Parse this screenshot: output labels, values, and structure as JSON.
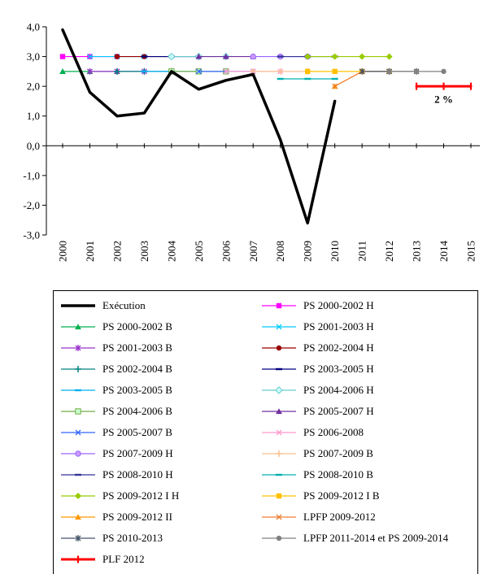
{
  "chart_data": {
    "type": "line",
    "title": "",
    "xlabel": "",
    "ylabel": "",
    "xlim": [
      2000,
      2015
    ],
    "ylim": [
      -3.0,
      4.0
    ],
    "grid": false,
    "legend_position": "bottom",
    "legend_columns": 2,
    "x_values": [
      2000,
      2001,
      2002,
      2003,
      2004,
      2005,
      2006,
      2007,
      2008,
      2009,
      2010,
      2011,
      2012,
      2013,
      2014,
      2015
    ],
    "x_labels": [
      "2000",
      "2001",
      "2002",
      "2003",
      "2004",
      "2005",
      "2006",
      "2007",
      "2008",
      "2009",
      "2010",
      "2011",
      "2012",
      "2013",
      "2014",
      "2015"
    ],
    "y_ticks": [
      {
        "value": 4,
        "label": "4,0"
      },
      {
        "value": 3,
        "label": "3,0"
      },
      {
        "value": 2,
        "label": "2,0"
      },
      {
        "value": 1,
        "label": "1,0"
      },
      {
        "value": 0,
        "label": "0,0"
      },
      {
        "value": -1,
        "label": "-1,0"
      },
      {
        "value": -2,
        "label": "-2,0"
      },
      {
        "value": -3,
        "label": "-3,0"
      }
    ],
    "annotation": {
      "text": "2 %",
      "x": 2014,
      "y": 1.45,
      "color": "#FF0000"
    },
    "series": [
      {
        "name": "Exécution",
        "color": "#000000",
        "marker": "none",
        "line_width": 3.5,
        "points": [
          [
            2000,
            3.9
          ],
          [
            2001,
            1.8
          ],
          [
            2002,
            1.0
          ],
          [
            2003,
            1.1
          ],
          [
            2004,
            2.5
          ],
          [
            2005,
            1.9
          ],
          [
            2006,
            2.2
          ],
          [
            2007,
            2.4
          ],
          [
            2008,
            0.2
          ],
          [
            2009,
            -2.6
          ],
          [
            2010,
            1.5
          ]
        ]
      },
      {
        "name": "PS 2000-2002 H",
        "color": "#FF00FF",
        "marker": "square",
        "points": [
          [
            2000,
            3.0
          ],
          [
            2001,
            3.0
          ],
          [
            2002,
            3.0
          ]
        ]
      },
      {
        "name": "PS 2000-2002 B",
        "color": "#00B050",
        "marker": "triangle",
        "points": [
          [
            2000,
            2.5
          ],
          [
            2001,
            2.5
          ],
          [
            2002,
            2.5
          ]
        ]
      },
      {
        "name": "PS 2001-2003 H",
        "color": "#00CCFF",
        "marker": "x",
        "points": [
          [
            2001,
            3.0
          ],
          [
            2002,
            3.0
          ],
          [
            2003,
            3.0
          ]
        ]
      },
      {
        "name": "PS 2001-2003 B",
        "color": "#9933CC",
        "marker": "asterisk",
        "points": [
          [
            2001,
            2.5
          ],
          [
            2002,
            2.5
          ],
          [
            2003,
            2.5
          ]
        ]
      },
      {
        "name": "PS 2002-2004 H",
        "color": "#990000",
        "marker": "circle",
        "points": [
          [
            2002,
            3.0
          ],
          [
            2003,
            3.0
          ],
          [
            2004,
            3.0
          ]
        ]
      },
      {
        "name": "PS 2002-2004 B",
        "color": "#008080",
        "marker": "plus",
        "points": [
          [
            2002,
            2.5
          ],
          [
            2003,
            2.5
          ],
          [
            2004,
            2.5
          ]
        ]
      },
      {
        "name": "PS 2003-2005 H",
        "color": "#000080",
        "marker": "dash",
        "points": [
          [
            2003,
            3.0
          ],
          [
            2004,
            3.0
          ],
          [
            2005,
            3.0
          ]
        ]
      },
      {
        "name": "PS 2003-2005 B",
        "color": "#00B0F0",
        "marker": "dash",
        "points": [
          [
            2003,
            2.5
          ],
          [
            2004,
            2.5
          ],
          [
            2005,
            2.5
          ]
        ]
      },
      {
        "name": "PS 2004-2006 H",
        "color": "#66CCCC",
        "fill": "#CCFFFF",
        "marker": "diamond",
        "points": [
          [
            2004,
            3.0
          ],
          [
            2005,
            3.0
          ],
          [
            2006,
            3.0
          ]
        ]
      },
      {
        "name": "PS 2004-2006 B",
        "color": "#70AD47",
        "fill": "#CCFFCC",
        "marker": "square",
        "points": [
          [
            2004,
            2.5
          ],
          [
            2005,
            2.5
          ],
          [
            2006,
            2.5
          ]
        ]
      },
      {
        "name": "PS 2005-2007 H",
        "color": "#7030A0",
        "marker": "triangle",
        "points": [
          [
            2005,
            3.0
          ],
          [
            2006,
            3.0
          ],
          [
            2007,
            3.0
          ]
        ]
      },
      {
        "name": "PS 2005-2007 B",
        "color": "#3366FF",
        "marker": "x",
        "points": [
          [
            2005,
            2.5
          ],
          [
            2006,
            2.5
          ],
          [
            2007,
            2.5
          ]
        ]
      },
      {
        "name": "PS 2006-2008",
        "color": "#FF99CC",
        "marker": "x",
        "points": [
          [
            2006,
            2.5
          ],
          [
            2007,
            2.5
          ],
          [
            2008,
            2.5
          ]
        ]
      },
      {
        "name": "PS 2007-2009 H",
        "color": "#9966FF",
        "fill": "#CC99FF",
        "marker": "circle",
        "points": [
          [
            2007,
            3.0
          ],
          [
            2008,
            3.0
          ],
          [
            2009,
            3.0
          ]
        ]
      },
      {
        "name": "PS 2007-2009 B",
        "color": "#FAC090",
        "marker": "plus",
        "points": [
          [
            2007,
            2.5
          ],
          [
            2008,
            2.5
          ],
          [
            2009,
            2.5
          ]
        ]
      },
      {
        "name": "PS 2008-2010 H",
        "color": "#333399",
        "marker": "dash",
        "points": [
          [
            2008,
            3.0
          ],
          [
            2009,
            3.0
          ],
          [
            2010,
            3.0
          ]
        ]
      },
      {
        "name": "PS 2008-2010 B",
        "color": "#00B0B0",
        "marker": "dash",
        "points": [
          [
            2008,
            2.25
          ],
          [
            2009,
            2.25
          ],
          [
            2010,
            2.25
          ]
        ]
      },
      {
        "name": "PS 2009-2012 I H",
        "color": "#99CC00",
        "marker": "diamond",
        "points": [
          [
            2009,
            3.0
          ],
          [
            2010,
            3.0
          ],
          [
            2011,
            3.0
          ],
          [
            2012,
            3.0
          ]
        ]
      },
      {
        "name": "PS 2009-2012 I B",
        "color": "#FFC000",
        "marker": "square",
        "points": [
          [
            2009,
            2.5
          ],
          [
            2010,
            2.5
          ],
          [
            2011,
            2.5
          ],
          [
            2012,
            2.5
          ]
        ]
      },
      {
        "name": "PS 2009-2012 II",
        "color": "#FF9900",
        "marker": "triangle",
        "points": [
          [
            2010,
            2.0
          ],
          [
            2011,
            2.5
          ],
          [
            2012,
            2.5
          ]
        ]
      },
      {
        "name": "LPFP 2009-2012",
        "color": "#ED7D31",
        "marker": "x",
        "points": [
          [
            2010,
            2.0
          ],
          [
            2011,
            2.5
          ],
          [
            2012,
            2.5
          ]
        ]
      },
      {
        "name": "PS 2010-2013",
        "color": "#44546A",
        "marker": "asterisk",
        "points": [
          [
            2011,
            2.5
          ],
          [
            2012,
            2.5
          ],
          [
            2013,
            2.5
          ]
        ]
      },
      {
        "name": "LPFP 2011-2014 et PS 2009-2014",
        "color": "#808080",
        "marker": "circle",
        "points": [
          [
            2012,
            2.5
          ],
          [
            2013,
            2.5
          ],
          [
            2014,
            2.5
          ]
        ]
      },
      {
        "name": "PLF 2012",
        "color": "#FF0000",
        "marker": "vdash",
        "line_width": 3,
        "points": [
          [
            2013,
            2.0
          ],
          [
            2014,
            2.0
          ],
          [
            2015,
            2.0
          ]
        ]
      }
    ]
  }
}
